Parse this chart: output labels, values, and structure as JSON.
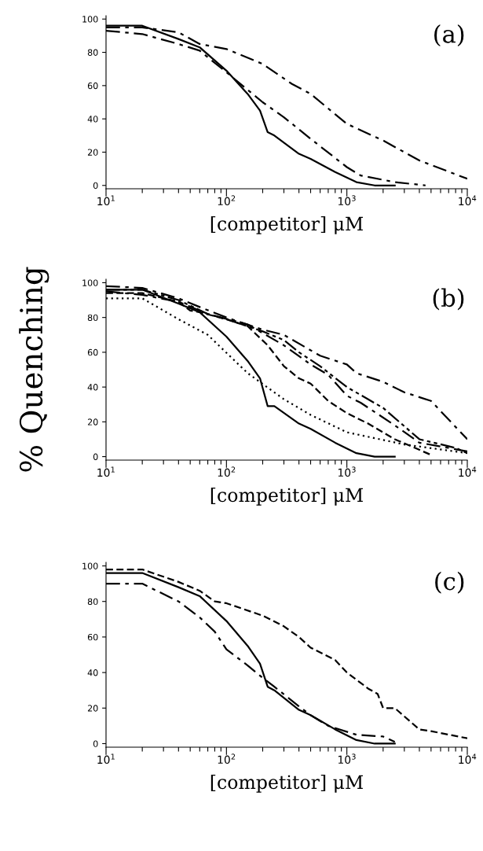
{
  "chart_data": [
    {
      "type": "line",
      "xlabel": "[competitor] μM",
      "annotations": [
        "(a)"
      ],
      "log": "x",
      "xlim": [
        10,
        10000
      ],
      "ylim": [
        -2,
        102
      ],
      "yticks": [
        0,
        20,
        40,
        60,
        80,
        100
      ],
      "grid": false,
      "xticks": [
        {
          "value": 10,
          "label": "10$^{1}$"
        },
        {
          "value": 20,
          "label": null
        },
        {
          "value": 30,
          "label": null
        },
        {
          "value": 40,
          "label": null
        },
        {
          "value": 50,
          "label": null
        },
        {
          "value": 60,
          "label": null
        },
        {
          "value": 70,
          "label": null
        },
        {
          "value": 80,
          "label": null
        },
        {
          "value": 90,
          "label": null
        },
        {
          "value": 100,
          "label": "10$^{2}$"
        },
        {
          "value": 200,
          "label": null
        },
        {
          "value": 300,
          "label": null
        },
        {
          "value": 400,
          "label": null
        },
        {
          "value": 500,
          "label": null
        },
        {
          "value": 600,
          "label": null
        },
        {
          "value": 700,
          "label": null
        },
        {
          "value": 800,
          "label": null
        },
        {
          "value": 900,
          "label": null
        },
        {
          "value": 1000,
          "label": "10$^{3}$"
        },
        {
          "value": 2000,
          "label": null
        },
        {
          "value": 3000,
          "label": null
        },
        {
          "value": 4000,
          "label": null
        },
        {
          "value": 5000,
          "label": null
        },
        {
          "value": 6000,
          "label": null
        },
        {
          "value": 7000,
          "label": null
        },
        {
          "value": 8000,
          "label": null
        },
        {
          "value": 9000,
          "label": null
        },
        {
          "value": 10000,
          "label": "10$^{4}$"
        }
      ],
      "series": [
        {
          "color": "#000000",
          "line_style": "solid",
          "x": [
            10,
            20,
            40,
            60,
            100,
            150,
            190,
            220,
            250,
            400,
            500,
            800,
            1200,
            1700,
            2500
          ],
          "values": [
            96,
            96,
            88,
            83,
            69,
            55,
            45,
            32,
            30,
            19,
            16,
            8,
            2,
            0,
            0
          ]
        },
        {
          "color": "#000000",
          "line_style": "dashdot",
          "x": [
            10,
            20,
            40,
            60,
            100,
            200,
            350,
            500,
            1000,
            2000,
            4000,
            10000
          ],
          "values": [
            95,
            95,
            92,
            85,
            82,
            73,
            61,
            55,
            37,
            27,
            15,
            4
          ]
        },
        {
          "color": "#000000",
          "line_style": "dashdot",
          "x": [
            10,
            20,
            40,
            60,
            70,
            100,
            200,
            300,
            500,
            1000,
            1300,
            2500,
            4500
          ],
          "values": [
            93,
            91,
            85,
            81,
            77,
            68,
            50,
            41,
            28,
            11,
            6,
            2,
            0
          ]
        }
      ]
    },
    {
      "type": "line",
      "xlabel": "[competitor] μM",
      "ylabel": "% Quenching",
      "annotations": [
        "(b)"
      ],
      "log": "x",
      "xlim": [
        10,
        10000
      ],
      "ylim": [
        -2,
        102
      ],
      "yticks": [
        0,
        20,
        40,
        60,
        80,
        100
      ],
      "grid": false,
      "xticks": [
        {
          "value": 10,
          "label": "10$^{1}$"
        },
        {
          "value": 20,
          "label": null
        },
        {
          "value": 30,
          "label": null
        },
        {
          "value": 40,
          "label": null
        },
        {
          "value": 50,
          "label": null
        },
        {
          "value": 60,
          "label": null
        },
        {
          "value": 70,
          "label": null
        },
        {
          "value": 80,
          "label": null
        },
        {
          "value": 90,
          "label": null
        },
        {
          "value": 100,
          "label": "10$^{2}$"
        },
        {
          "value": 200,
          "label": null
        },
        {
          "value": 300,
          "label": null
        },
        {
          "value": 400,
          "label": null
        },
        {
          "value": 500,
          "label": null
        },
        {
          "value": 600,
          "label": null
        },
        {
          "value": 700,
          "label": null
        },
        {
          "value": 800,
          "label": null
        },
        {
          "value": 900,
          "label": null
        },
        {
          "value": 1000,
          "label": "10$^{3}$"
        },
        {
          "value": 2000,
          "label": null
        },
        {
          "value": 3000,
          "label": null
        },
        {
          "value": 4000,
          "label": null
        },
        {
          "value": 5000,
          "label": null
        },
        {
          "value": 6000,
          "label": null
        },
        {
          "value": 7000,
          "label": null
        },
        {
          "value": 8000,
          "label": null
        },
        {
          "value": 9000,
          "label": null
        },
        {
          "value": 10000,
          "label": "10$^{4}$"
        }
      ],
      "series": [
        {
          "color": "#000000",
          "line_style": "solid",
          "x": [
            10,
            20,
            40,
            60,
            100,
            150,
            190,
            220,
            250,
            400,
            500,
            800,
            1200,
            1700,
            2500
          ],
          "values": [
            96,
            96,
            88,
            83,
            69,
            55,
            45,
            29,
            29,
            19,
            16,
            8,
            2,
            0,
            0
          ]
        },
        {
          "color": "#000000",
          "line_style": "dotted",
          "x": [
            10,
            20,
            40,
            70,
            150,
            300,
            500,
            1000,
            3000,
            10000
          ],
          "values": [
            91,
            91,
            79,
            70,
            48,
            33,
            24,
            14,
            7,
            2
          ]
        },
        {
          "color": "#000000",
          "line_style": "dashdot",
          "x": [
            10,
            20,
            40,
            60,
            100,
            200,
            300,
            600,
            1000,
            1200,
            2000,
            3000,
            5000,
            10000
          ],
          "values": [
            98,
            97,
            91,
            86,
            80,
            73,
            70,
            58,
            53,
            48,
            43,
            37,
            32,
            10
          ]
        },
        {
          "color": "#000000",
          "line_style": "dashed",
          "x": [
            10,
            20,
            40,
            50,
            60,
            100,
            150,
            220,
            300,
            400,
            500,
            700,
            1000,
            1500,
            2500,
            5000
          ],
          "values": [
            94,
            94,
            89,
            84,
            83,
            79,
            75,
            64,
            52,
            45,
            42,
            32,
            25,
            19,
            10,
            1
          ]
        },
        {
          "color": "#000000",
          "line_style": "dashdotdot",
          "x": [
            10,
            20,
            40,
            70,
            100,
            200,
            300,
            400,
            600,
            1000,
            2000,
            4000,
            8000,
            10000
          ],
          "values": [
            96,
            96,
            90,
            82,
            79,
            72,
            67,
            60,
            52,
            40,
            28,
            10,
            5,
            2
          ]
        },
        {
          "color": "#000000",
          "line_style": "dashdot",
          "x": [
            10,
            20,
            40,
            70,
            150,
            300,
            500,
            700,
            1000,
            1300,
            2500,
            4000,
            7000,
            10000
          ],
          "values": [
            95,
            93,
            89,
            82,
            76,
            64,
            53,
            47,
            35,
            31,
            18,
            8,
            5,
            3
          ]
        }
      ]
    },
    {
      "type": "line",
      "xlabel": "[competitor] μM",
      "annotations": [
        "(c)"
      ],
      "log": "x",
      "xlim": [
        10,
        10000
      ],
      "ylim": [
        -2,
        102
      ],
      "yticks": [
        0,
        20,
        40,
        60,
        80,
        100
      ],
      "grid": false,
      "xticks": [
        {
          "value": 10,
          "label": "10$^{1}$"
        },
        {
          "value": 20,
          "label": null
        },
        {
          "value": 30,
          "label": null
        },
        {
          "value": 40,
          "label": null
        },
        {
          "value": 50,
          "label": null
        },
        {
          "value": 60,
          "label": null
        },
        {
          "value": 70,
          "label": null
        },
        {
          "value": 80,
          "label": null
        },
        {
          "value": 90,
          "label": null
        },
        {
          "value": 100,
          "label": "10$^{2}$"
        },
        {
          "value": 200,
          "label": null
        },
        {
          "value": 300,
          "label": null
        },
        {
          "value": 400,
          "label": null
        },
        {
          "value": 500,
          "label": null
        },
        {
          "value": 600,
          "label": null
        },
        {
          "value": 700,
          "label": null
        },
        {
          "value": 800,
          "label": null
        },
        {
          "value": 900,
          "label": null
        },
        {
          "value": 1000,
          "label": "10$^{3}$"
        },
        {
          "value": 2000,
          "label": null
        },
        {
          "value": 3000,
          "label": null
        },
        {
          "value": 4000,
          "label": null
        },
        {
          "value": 5000,
          "label": null
        },
        {
          "value": 6000,
          "label": null
        },
        {
          "value": 7000,
          "label": null
        },
        {
          "value": 8000,
          "label": null
        },
        {
          "value": 9000,
          "label": null
        },
        {
          "value": 10000,
          "label": "10$^{4}$"
        }
      ],
      "series": [
        {
          "color": "#000000",
          "line_style": "solid",
          "x": [
            10,
            20,
            40,
            60,
            100,
            150,
            190,
            220,
            250,
            400,
            500,
            800,
            1200,
            1700,
            2500
          ],
          "values": [
            96,
            96,
            88,
            83,
            69,
            55,
            45,
            32,
            30,
            19,
            16,
            8,
            2,
            0,
            0
          ]
        },
        {
          "color": "#000000",
          "line_style": "dashed",
          "x": [
            10,
            20,
            40,
            60,
            80,
            100,
            200,
            300,
            400,
            500,
            800,
            1000,
            1500,
            1800,
            2000,
            2500,
            4000,
            5000,
            10000
          ],
          "values": [
            98,
            98,
            91,
            86,
            80,
            79,
            72,
            66,
            60,
            54,
            47,
            40,
            31,
            28,
            20,
            20,
            8,
            7,
            3
          ]
        },
        {
          "color": "#000000",
          "line_style": "dashdot",
          "x": [
            10,
            20,
            40,
            60,
            80,
            100,
            150,
            200,
            250,
            400,
            500,
            700,
            1200,
            2000,
            2500
          ],
          "values": [
            90,
            90,
            80,
            71,
            63,
            53,
            44,
            37,
            32,
            21,
            16,
            10,
            5,
            4,
            1
          ]
        }
      ]
    }
  ]
}
